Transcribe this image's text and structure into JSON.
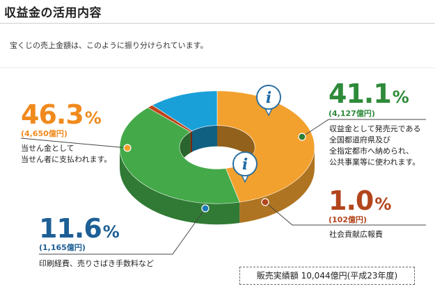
{
  "page": {
    "title": "収益金の活用内容",
    "intro": "宝くじの売上金額は、このように振り分けられています。"
  },
  "colors": {
    "orange": "#f3a12e",
    "green": "#44a949",
    "blue": "#1aa0d8",
    "red": "#c0441a",
    "dark_green": "#2f7d32",
    "text_orange": "#f08a1d",
    "text_green": "#2e8b3a",
    "text_blue": "#1d5f95",
    "text_red": "#b2451c"
  },
  "labels": {
    "prize": {
      "percent": "46.3",
      "percent_symbol": "%",
      "amount": "(4,650億円)",
      "desc": [
        "当せん金として",
        "当せん者に支払われます。"
      ]
    },
    "public": {
      "percent": "41.1",
      "percent_symbol": "%",
      "amount": "(4,127億円)",
      "desc": [
        "収益金として発売元である",
        "全国都道府県及び",
        "全指定都市へ納められ、",
        "公共事業等に使われます。"
      ]
    },
    "printing": {
      "percent": "11.6",
      "percent_symbol": "%",
      "amount": "(1,165億円)",
      "desc": [
        "印刷経費、売りさばき手数料など"
      ]
    },
    "ads": {
      "percent": "1.0",
      "percent_symbol": "%",
      "amount": "(102億円)",
      "desc": [
        "社会貢献広報費"
      ]
    }
  },
  "total": "販売実績額 10,044億円(平成23年度)",
  "chart_data": {
    "type": "pie",
    "style": "3d-donut",
    "slices": [
      {
        "name": "当せん金",
        "value": 46.3,
        "amount": "4,650億円",
        "color": "#f3a12e"
      },
      {
        "name": "収益金",
        "value": 41.1,
        "amount": "4,127億円",
        "color": "#44a949"
      },
      {
        "name": "社会貢献広報費",
        "value": 1.0,
        "amount": "102億円",
        "color": "#c0441a"
      },
      {
        "name": "印刷経費、売りさばき手数料など",
        "value": 11.6,
        "amount": "1,165億円",
        "color": "#1aa0d8"
      }
    ],
    "total": "10,044億円",
    "icons": [
      "info-icon",
      "info-icon"
    ]
  }
}
